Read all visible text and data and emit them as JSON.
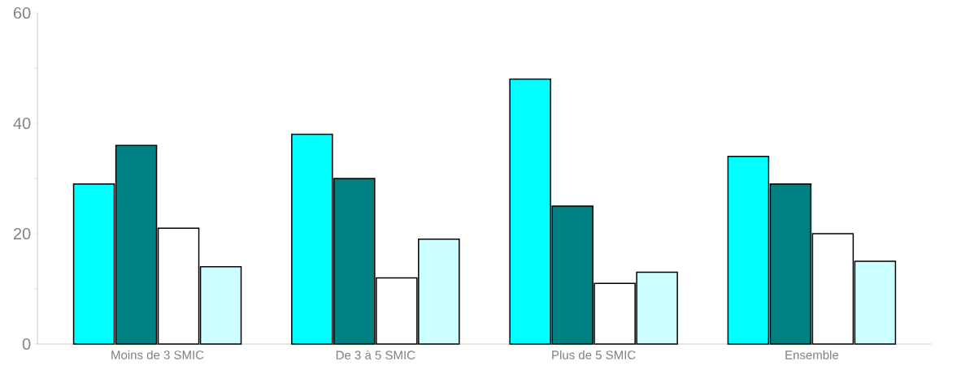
{
  "chart_data": {
    "type": "bar",
    "categories": [
      "Moins de 3 SMIC",
      "De 3 à 5 SMIC",
      "Plus de 5 SMIC",
      "Ensemble"
    ],
    "series": [
      {
        "color": "#00ffff",
        "values": [
          29,
          38,
          48,
          34
        ]
      },
      {
        "color": "#008080",
        "values": [
          36,
          30,
          25,
          29
        ]
      },
      {
        "color": "#ffffff",
        "values": [
          21,
          12,
          11,
          20
        ]
      },
      {
        "color": "#ccffff",
        "values": [
          14,
          19,
          13,
          15
        ]
      }
    ],
    "ylim": [
      0,
      60
    ],
    "yticks": [
      0,
      {
        "value": 10,
        "label": null
      },
      20,
      {
        "value": 30,
        "label": null
      },
      40,
      {
        "value": 50,
        "label": null
      },
      60
    ]
  }
}
